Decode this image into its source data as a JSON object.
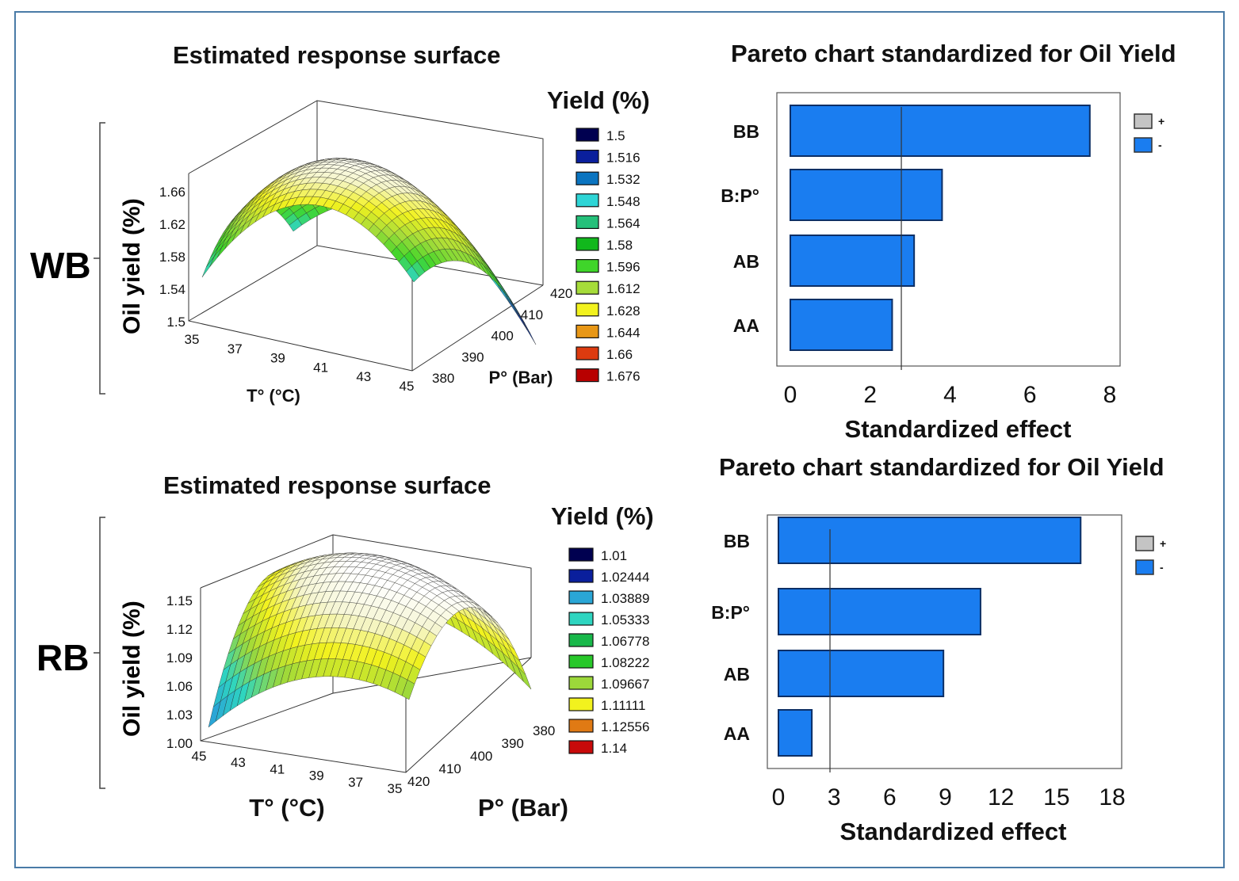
{
  "panels": {
    "wb_label": "WB",
    "rb_label": "RB"
  },
  "chart_data": [
    {
      "id": "wb_surface",
      "type": "surface",
      "title": "Estimated response surface",
      "zlabel": "Oil  yield (%)",
      "xlabel": "T° (°C)",
      "ylabel": "P° (Bar)",
      "x_ticks": [
        "35",
        "37",
        "39",
        "41",
        "43",
        "45"
      ],
      "y_ticks": [
        "380",
        "390",
        "400",
        "410",
        "420"
      ],
      "z_ticks": [
        "1.5",
        "1.54",
        "1.58",
        "1.62",
        "1.66"
      ],
      "legend_title": "Yield (%)",
      "legend": [
        {
          "label": "1.5",
          "color": "#000050"
        },
        {
          "label": "1.516",
          "color": "#0a1f9c"
        },
        {
          "label": "1.532",
          "color": "#0a74c0"
        },
        {
          "label": "1.548",
          "color": "#2ed5d6"
        },
        {
          "label": "1.564",
          "color": "#25c07a"
        },
        {
          "label": "1.58",
          "color": "#11b81c"
        },
        {
          "label": "1.596",
          "color": "#3fd52a"
        },
        {
          "label": "1.612",
          "color": "#a6dc3a"
        },
        {
          "label": "1.628",
          "color": "#f2f21e"
        },
        {
          "label": "1.644",
          "color": "#e89716"
        },
        {
          "label": "1.66",
          "color": "#dd3b0f"
        },
        {
          "label": "1.676",
          "color": "#b80000"
        }
      ]
    },
    {
      "id": "wb_pareto",
      "type": "bar",
      "orientation": "horizontal",
      "title": "Pareto chart standardized for Oil Yield",
      "xlabel": "Standardized effect",
      "categories": [
        "BB",
        "B:P°",
        "AB",
        "AA"
      ],
      "values": [
        7.5,
        3.8,
        3.1,
        2.55
      ],
      "xlim": [
        0,
        8
      ],
      "x_ticks": [
        "0",
        "2",
        "4",
        "6",
        "8"
      ],
      "reference_line": 2.78,
      "legend": [
        {
          "label": "+",
          "color": "#c4c4c4"
        },
        {
          "label": "-",
          "color": "#1a7df0"
        }
      ]
    },
    {
      "id": "rb_surface",
      "type": "surface",
      "title": "Estimated response surface",
      "zlabel": "Oil  yield (%)",
      "xlabel": "T° (°C)",
      "ylabel": "P° (Bar)",
      "x_ticks": [
        "45",
        "43",
        "41",
        "39",
        "37",
        "35"
      ],
      "y_ticks": [
        "420",
        "410",
        "400",
        "390",
        "380"
      ],
      "z_ticks": [
        "1.00",
        "1.03",
        "1.06",
        "1.09",
        "1.12",
        "1.15"
      ],
      "legend_title": "Yield (%)",
      "legend": [
        {
          "label": "1.01",
          "color": "#000050"
        },
        {
          "label": "1.02444",
          "color": "#0a1f9c"
        },
        {
          "label": "1.03889",
          "color": "#2aa6d6"
        },
        {
          "label": "1.05333",
          "color": "#2ed5c0"
        },
        {
          "label": "1.06778",
          "color": "#18b84a"
        },
        {
          "label": "1.08222",
          "color": "#28c82a"
        },
        {
          "label": "1.09667",
          "color": "#9cd83a"
        },
        {
          "label": "1.11111",
          "color": "#f2f21e"
        },
        {
          "label": "1.12556",
          "color": "#e07a14"
        },
        {
          "label": "1.14",
          "color": "#c80a0a"
        }
      ]
    },
    {
      "id": "rb_pareto",
      "type": "bar",
      "orientation": "horizontal",
      "title": "Pareto chart standardized for Oil Yield",
      "xlabel": "Standardized effect",
      "categories": [
        "BB",
        "B:P°",
        "AB",
        "AA"
      ],
      "values": [
        16.3,
        10.9,
        8.9,
        1.8
      ],
      "xlim": [
        0,
        18
      ],
      "x_ticks": [
        "0",
        "3",
        "6",
        "9",
        "12",
        "15",
        "18"
      ],
      "reference_line": 2.78,
      "legend": [
        {
          "label": "+",
          "color": "#c4c4c4"
        },
        {
          "label": "-",
          "color": "#1a7df0"
        }
      ]
    }
  ]
}
